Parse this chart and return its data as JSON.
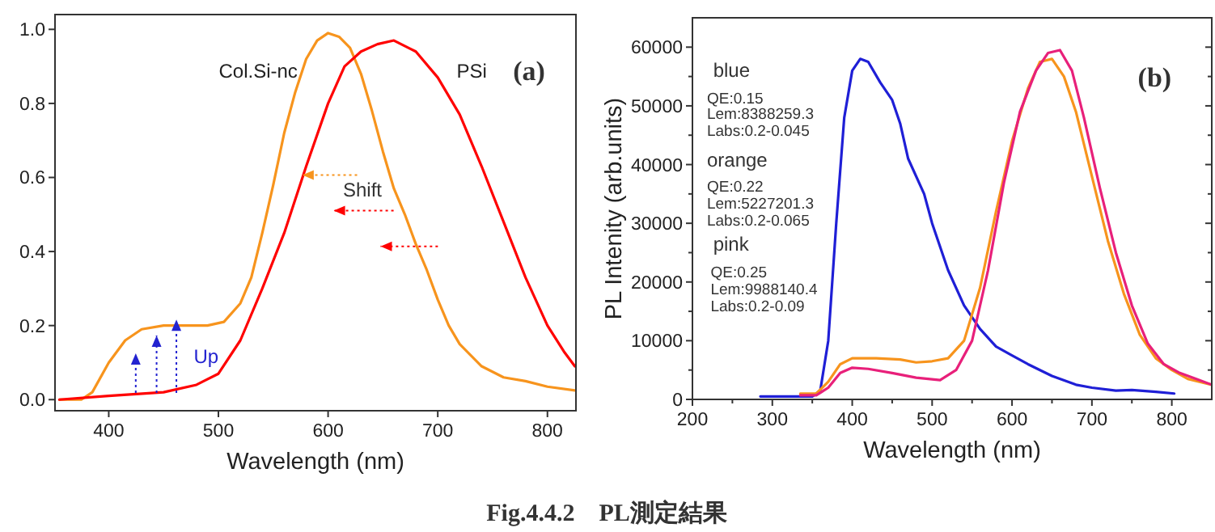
{
  "chart_data": [
    {
      "type": "line",
      "xlabel": "Wavelength (nm)",
      "xlim": [
        351,
        826
      ],
      "ylim": [
        -0.03,
        1.04
      ],
      "xticks": [
        400,
        500,
        600,
        700,
        800
      ],
      "yticks": [
        {
          "value": 0,
          "label": "0.0"
        },
        {
          "value": 0.2,
          "label": "0.2"
        },
        {
          "value": 0.4,
          "label": "0.4"
        },
        {
          "value": 0.6,
          "label": "0.6"
        },
        {
          "value": 0.8,
          "label": "0.8"
        },
        {
          "value": 1,
          "label": "1.0"
        }
      ],
      "grid": false,
      "marker": "none",
      "line_style": "solid",
      "series": [
        {
          "name": "Col.Si-nc",
          "color": "#f7941d",
          "x": [
            355,
            375,
            385,
            400,
            415,
            430,
            450,
            470,
            490,
            505,
            520,
            530,
            540,
            550,
            560,
            570,
            580,
            590,
            600,
            610,
            620,
            630,
            640,
            650,
            660,
            670,
            680,
            690,
            700,
            710,
            720,
            730,
            740,
            760,
            780,
            800,
            825
          ],
          "values": [
            0,
            0,
            0.02,
            0.1,
            0.16,
            0.19,
            0.2,
            0.2,
            0.2,
            0.21,
            0.26,
            0.33,
            0.45,
            0.58,
            0.72,
            0.83,
            0.92,
            0.97,
            0.99,
            0.98,
            0.95,
            0.88,
            0.78,
            0.67,
            0.57,
            0.5,
            0.42,
            0.35,
            0.27,
            0.2,
            0.15,
            0.12,
            0.09,
            0.06,
            0.05,
            0.035,
            0.025
          ]
        },
        {
          "name": "PSi",
          "color": "#ff0000",
          "x": [
            355,
            400,
            450,
            480,
            500,
            520,
            540,
            560,
            580,
            600,
            615,
            630,
            645,
            660,
            680,
            700,
            720,
            740,
            760,
            780,
            800,
            815,
            825
          ],
          "values": [
            0,
            0.01,
            0.02,
            0.04,
            0.07,
            0.16,
            0.3,
            0.45,
            0.63,
            0.8,
            0.9,
            0.94,
            0.96,
            0.97,
            0.94,
            0.87,
            0.77,
            0.63,
            0.48,
            0.33,
            0.2,
            0.13,
            0.09
          ]
        }
      ],
      "annotations": [
        "(a)",
        "Shift",
        "Up",
        "Fig.4.4.2　PL測定結果"
      ]
    },
    {
      "type": "line",
      "xlabel": "Wavelength (nm)",
      "ylabel": "PL Intenity (arb.units)",
      "xlim": [
        200,
        850
      ],
      "ylim": [
        0,
        65000
      ],
      "xticks": [
        200,
        {
          "value": 250,
          "label": null
        },
        300,
        {
          "value": 350,
          "label": null
        },
        400,
        {
          "value": 450,
          "label": null
        },
        500,
        {
          "value": 550,
          "label": null
        },
        600,
        {
          "value": 650,
          "label": null
        },
        700,
        {
          "value": 750,
          "label": null
        },
        800
      ],
      "yticks": [
        0,
        {
          "value": 5000,
          "label": null
        },
        10000,
        {
          "value": 15000,
          "label": null
        },
        20000,
        {
          "value": 25000,
          "label": null
        },
        30000,
        {
          "value": 35000,
          "label": null
        },
        40000,
        {
          "value": 45000,
          "label": null
        },
        50000,
        {
          "value": 55000,
          "label": null
        },
        60000
      ],
      "grid": false,
      "marker": "none",
      "line_style": "solid",
      "series": [
        {
          "color": "#1f1fd6",
          "x": [
            285,
            350,
            360,
            370,
            380,
            390,
            400,
            410,
            420,
            435,
            450,
            460,
            470,
            490,
            500,
            520,
            540,
            560,
            580,
            600,
            620,
            650,
            680,
            700,
            730,
            750,
            780,
            803
          ],
          "values": [
            500,
            500,
            1500,
            10000,
            30000,
            48000,
            56000,
            58000,
            57500,
            54000,
            51000,
            47000,
            41000,
            35000,
            30000,
            22000,
            16000,
            12000,
            9000,
            7500,
            6000,
            4000,
            2500,
            2000,
            1500,
            1600,
            1300,
            1000
          ]
        },
        {
          "color": "#f7941d",
          "x": [
            335,
            355,
            370,
            385,
            400,
            430,
            460,
            480,
            500,
            520,
            540,
            560,
            580,
            600,
            620,
            635,
            650,
            665,
            680,
            700,
            720,
            740,
            760,
            780,
            800,
            820,
            850
          ],
          "values": [
            1000,
            1000,
            3000,
            6000,
            7000,
            7000,
            6800,
            6300,
            6500,
            7000,
            10000,
            19000,
            32000,
            44000,
            53000,
            57500,
            58000,
            55000,
            49000,
            38000,
            27000,
            18000,
            11000,
            7000,
            5000,
            3500,
            2500
          ]
        },
        {
          "color": "#e8207a",
          "x": [
            335,
            355,
            370,
            385,
            400,
            420,
            450,
            480,
            510,
            530,
            550,
            570,
            590,
            610,
            630,
            645,
            660,
            675,
            690,
            710,
            730,
            750,
            770,
            790,
            810,
            830,
            850
          ],
          "values": [
            700,
            700,
            2000,
            4500,
            5400,
            5200,
            4500,
            3700,
            3300,
            5000,
            10000,
            22000,
            37000,
            49000,
            56000,
            59000,
            59500,
            56000,
            48000,
            36000,
            25000,
            16000,
            9500,
            6000,
            4500,
            3500,
            2500
          ]
        }
      ],
      "annotations": [
        "(b)",
        "blue",
        "QE:0.15",
        "Lem:8388259.3",
        "Labs:0.2-0.045",
        "orange",
        "QE:0.22",
        "Lem:5227201.3",
        "Labs:0.2-0.065",
        "pink",
        "QE:0.25",
        "Lem:9988140.4",
        "Labs:0.2-0.09"
      ]
    }
  ]
}
